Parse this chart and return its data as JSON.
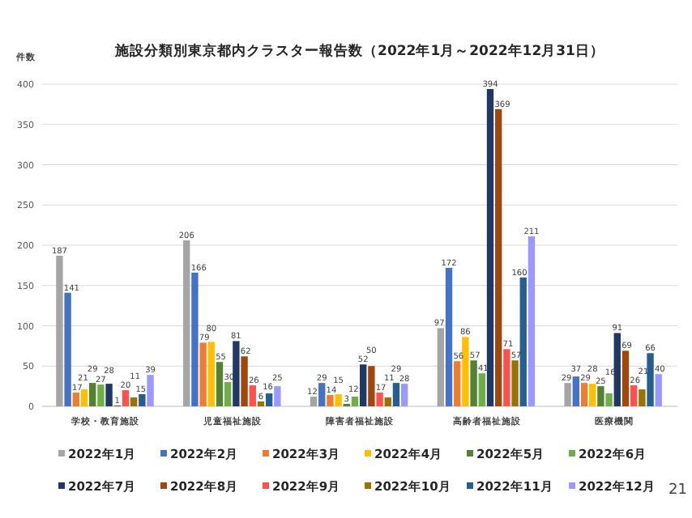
{
  "chart_data": {
    "type": "bar",
    "title": "施設分類別東京都内クラスター報告数（2022年1月～2022年12月31日）",
    "ylabel": "件数",
    "categories": [
      "学校・教育施設",
      "児童福祉施設",
      "障害者福祉施設",
      "高齢者福祉施設",
      "医療機関"
    ],
    "series": [
      {
        "name": "2022年1月",
        "color": "#a5a5a5",
        "values": [
          187,
          206,
          12,
          97,
          29
        ]
      },
      {
        "name": "2022年2月",
        "color": "#4472c4",
        "values": [
          141,
          166,
          29,
          172,
          37
        ]
      },
      {
        "name": "2022年3月",
        "color": "#ed7d31",
        "values": [
          17,
          79,
          14,
          56,
          29
        ]
      },
      {
        "name": "2022年4月",
        "color": "#ffc000",
        "values": [
          21,
          80,
          15,
          86,
          28
        ]
      },
      {
        "name": "2022年5月",
        "color": "#548235",
        "values": [
          29,
          55,
          3,
          57,
          25
        ]
      },
      {
        "name": "2022年6月",
        "color": "#70ad47",
        "values": [
          27,
          30,
          12,
          41,
          16
        ]
      },
      {
        "name": "2022年7月",
        "color": "#203864",
        "values": [
          28,
          81,
          52,
          394,
          91
        ]
      },
      {
        "name": "2022年8月",
        "color": "#9e480e",
        "values": [
          1,
          62,
          50,
          369,
          69
        ]
      },
      {
        "name": "2022年9月",
        "color": "#ff5050",
        "values": [
          20,
          26,
          17,
          71,
          26
        ]
      },
      {
        "name": "2022年10月",
        "color": "#997300",
        "values": [
          11,
          6,
          11,
          57,
          21
        ]
      },
      {
        "name": "2022年11月",
        "color": "#255e91",
        "values": [
          15,
          16,
          29,
          160,
          66
        ]
      },
      {
        "name": "2022年12月",
        "color": "#9999ff",
        "values": [
          39,
          25,
          28,
          211,
          40
        ]
      }
    ],
    "ylim": [
      0,
      400
    ],
    "yticks": [
      0,
      50,
      100,
      150,
      200,
      250,
      300,
      350,
      400
    ],
    "grid": "y",
    "legend": "bottom",
    "data_labels": true,
    "annotations": [
      "21"
    ]
  }
}
